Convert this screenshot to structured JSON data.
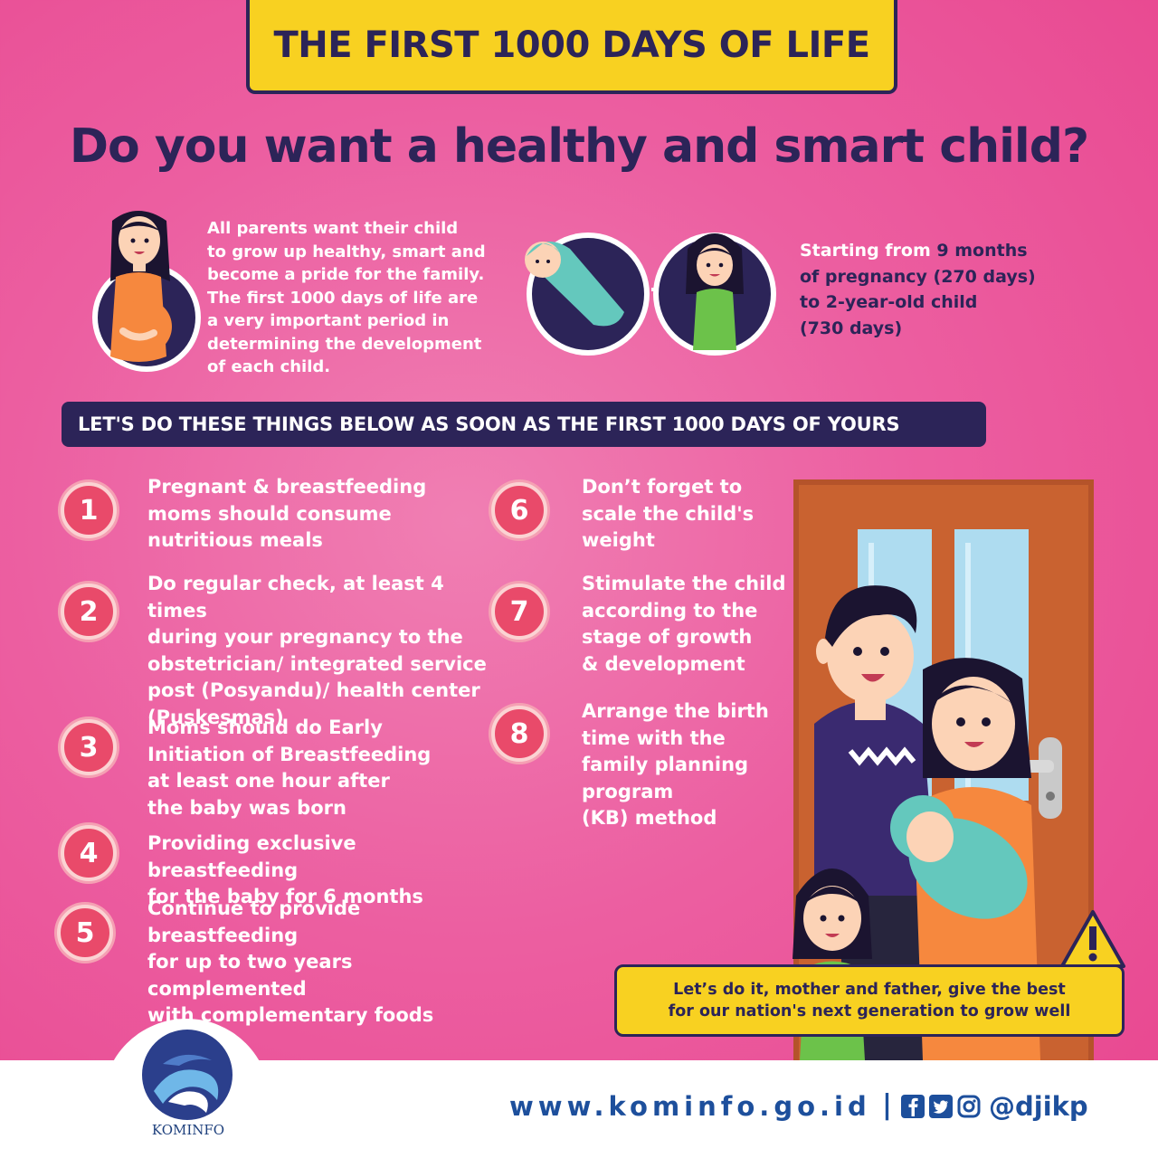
{
  "header": {
    "title": "THE FIRST 1000 DAYS OF LIFE"
  },
  "headline": "Do you want a healthy and smart child?",
  "intro": {
    "text": "All parents want their child\nto grow up healthy, smart and\nbecome a pride for the family.\nThe first 1000 days of life are\na very important period in\ndetermining the development\nof each child."
  },
  "period": {
    "prefix": "Starting from ",
    "highlight_1": "9 months\nof pregnancy (270 days)\nto 2-year-old child\n(730 days)"
  },
  "section": {
    "title": "LET'S DO THESE THINGS BELOW AS SOON AS THE FIRST 1000 DAYS OF YOURS"
  },
  "steps": [
    {
      "number": "1",
      "text": "Pregnant & breastfeeding\nmoms should consume\nnutritious meals"
    },
    {
      "number": "2",
      "text": "Do regular check, at least 4 times\nduring your pregnancy to the\nobstetrician/ integrated service\npost (Posyandu)/ health center\n(Puskesmas)"
    },
    {
      "number": "3",
      "text": "Moms should do Early\nInitiation of Breastfeeding\nat least one hour after\nthe baby was born"
    },
    {
      "number": "4",
      "text": "Providing exclusive breastfeeding\nfor the baby for 6 months"
    },
    {
      "number": "5",
      "text": "Continue to provide breastfeeding\nfor up to two years complemented\nwith complementary foods"
    },
    {
      "number": "6",
      "text": "Don’t forget to\nscale the child's\nweight"
    },
    {
      "number": "7",
      "text": "Stimulate the child\naccording to the\nstage of growth\n& development"
    },
    {
      "number": "8",
      "text": "Arrange the birth\ntime with the\nfamily planning\nprogram\n(KB) method"
    }
  ],
  "callout": {
    "text": "Let’s do it, mother and father, give the best\nfor our nation's next generation to grow well"
  },
  "footer": {
    "url": "www.kominfo.go.id",
    "separator": "|",
    "handle": "@djikp",
    "logo_text": "KOMINFO",
    "social_icons": [
      "facebook-icon",
      "twitter-icon",
      "instagram-icon"
    ]
  },
  "colors": {
    "navy": "#2c2458",
    "yellow": "#f8d121",
    "pink": "#ec5fa1",
    "badge_red": "#e94a6a",
    "footer_blue": "#1d4f9c"
  }
}
